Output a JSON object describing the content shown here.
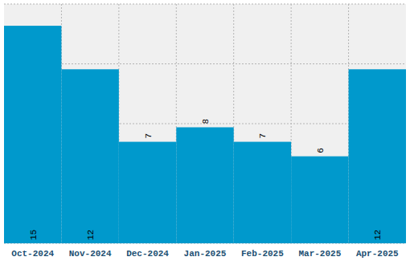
{
  "chart_data": {
    "type": "bar",
    "categories": [
      "Oct-2024",
      "Nov-2024",
      "Dec-2024",
      "Jan-2025",
      "Feb-2025",
      "Mar-2025",
      "Apr-2025"
    ],
    "values": [
      15,
      12,
      7,
      8,
      7,
      6,
      12
    ],
    "color": "#0099cc",
    "ylim": [
      0,
      16.5
    ],
    "yticks": [
      0,
      4.125,
      8.25,
      12.375,
      16.5
    ],
    "grid": true,
    "data_labels": true,
    "tick_labels": "x"
  }
}
